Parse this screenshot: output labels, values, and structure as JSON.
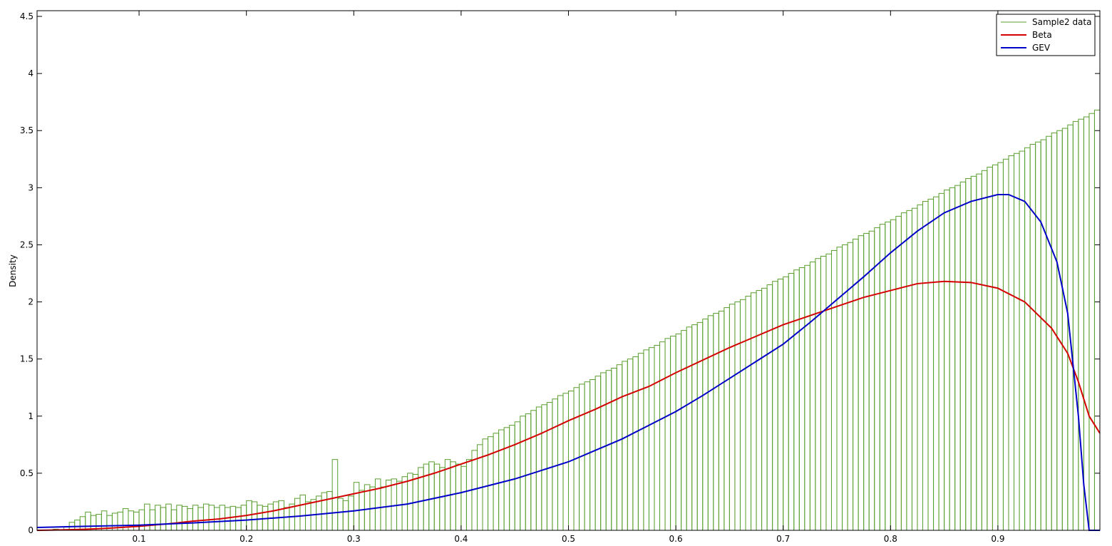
{
  "chart_data": {
    "type": "bar",
    "title": "",
    "xlabel": "",
    "ylabel": "Density",
    "xlim": [
      0.005,
      0.995
    ],
    "ylim": [
      0,
      4.55
    ],
    "xticks": [
      "0.1",
      "0.2",
      "0.3",
      "0.4",
      "0.5",
      "0.6",
      "0.7",
      "0.8",
      "0.9"
    ],
    "yticks": [
      "0",
      "0.5",
      "1",
      "1.5",
      "2",
      "2.5",
      "3",
      "3.5",
      "4",
      "4.5"
    ],
    "grid": false,
    "legend_position": "top-right",
    "histogram": {
      "name": "Sample2 data",
      "color": "#5a9e2f",
      "bin_start": 0.005,
      "bin_width": 0.005,
      "values": [
        0.0,
        0.0,
        0.0,
        0.01,
        0.0,
        0.03,
        0.07,
        0.09,
        0.12,
        0.16,
        0.13,
        0.14,
        0.17,
        0.13,
        0.15,
        0.16,
        0.19,
        0.17,
        0.16,
        0.18,
        0.23,
        0.18,
        0.22,
        0.2,
        0.23,
        0.18,
        0.22,
        0.21,
        0.19,
        0.22,
        0.2,
        0.23,
        0.22,
        0.2,
        0.22,
        0.2,
        0.21,
        0.2,
        0.22,
        0.26,
        0.25,
        0.22,
        0.21,
        0.23,
        0.25,
        0.26,
        0.2,
        0.23,
        0.28,
        0.31,
        0.25,
        0.27,
        0.3,
        0.33,
        0.34,
        0.62,
        0.28,
        0.26,
        0.3,
        0.42,
        0.35,
        0.4,
        0.38,
        0.45,
        0.38,
        0.44,
        0.45,
        0.43,
        0.47,
        0.5,
        0.49,
        0.55,
        0.58,
        0.6,
        0.58,
        0.55,
        0.62,
        0.6,
        0.58,
        0.56,
        0.62,
        0.7,
        0.75,
        0.8,
        0.82,
        0.85,
        0.88,
        0.9,
        0.92,
        0.95,
        1.0,
        1.02,
        1.05,
        1.08,
        1.1,
        1.12,
        1.15,
        1.18,
        1.2,
        1.22,
        1.25,
        1.28,
        1.3,
        1.32,
        1.35,
        1.38,
        1.4,
        1.42,
        1.45,
        1.48,
        1.5,
        1.52,
        1.55,
        1.58,
        1.6,
        1.62,
        1.65,
        1.68,
        1.7,
        1.72,
        1.75,
        1.78,
        1.8,
        1.82,
        1.85,
        1.88,
        1.9,
        1.92,
        1.95,
        1.98,
        2.0,
        2.02,
        2.05,
        2.08,
        2.1,
        2.12,
        2.15,
        2.18,
        2.2,
        2.22,
        2.25,
        2.28,
        2.3,
        2.32,
        2.35,
        2.38,
        2.4,
        2.42,
        2.45,
        2.48,
        2.5,
        2.52,
        2.55,
        2.58,
        2.6,
        2.62,
        2.65,
        2.68,
        2.7,
        2.72,
        2.75,
        2.78,
        2.8,
        2.82,
        2.85,
        2.88,
        2.9,
        2.92,
        2.95,
        2.98,
        3.0,
        3.02,
        3.05,
        3.08,
        3.1,
        3.12,
        3.15,
        3.18,
        3.2,
        3.22,
        3.25,
        3.28,
        3.3,
        3.32,
        3.35,
        3.38,
        3.4,
        3.42,
        3.45,
        3.48,
        3.5,
        3.52,
        3.55,
        3.58,
        3.6,
        3.62,
        3.65,
        3.68
      ]
    },
    "series": [
      {
        "name": "Beta",
        "type": "line",
        "color": "#d40000",
        "x": [
          0.005,
          0.025,
          0.05,
          0.075,
          0.1,
          0.125,
          0.15,
          0.175,
          0.2,
          0.225,
          0.25,
          0.275,
          0.3,
          0.325,
          0.35,
          0.375,
          0.4,
          0.425,
          0.45,
          0.475,
          0.5,
          0.525,
          0.55,
          0.575,
          0.6,
          0.625,
          0.65,
          0.675,
          0.7,
          0.725,
          0.75,
          0.775,
          0.8,
          0.825,
          0.85,
          0.875,
          0.9,
          0.925,
          0.95,
          0.965,
          0.975,
          0.985,
          0.995
        ],
        "y": [
          0.0,
          0.003,
          0.009,
          0.02,
          0.035,
          0.055,
          0.08,
          0.1,
          0.13,
          0.17,
          0.22,
          0.27,
          0.32,
          0.37,
          0.43,
          0.5,
          0.58,
          0.66,
          0.75,
          0.85,
          0.96,
          1.06,
          1.17,
          1.26,
          1.38,
          1.49,
          1.6,
          1.7,
          1.8,
          1.88,
          1.96,
          2.04,
          2.1,
          2.16,
          2.18,
          2.17,
          2.12,
          2.0,
          1.77,
          1.55,
          1.3,
          1.0,
          0.85
        ]
      },
      {
        "name": "GEV",
        "type": "line",
        "color": "#0000c8",
        "x": [
          0.005,
          0.05,
          0.1,
          0.15,
          0.2,
          0.25,
          0.3,
          0.35,
          0.4,
          0.45,
          0.5,
          0.525,
          0.55,
          0.575,
          0.6,
          0.625,
          0.65,
          0.675,
          0.7,
          0.725,
          0.75,
          0.775,
          0.8,
          0.825,
          0.85,
          0.875,
          0.9,
          0.91,
          0.925,
          0.94,
          0.955,
          0.965,
          0.975,
          0.98,
          0.985,
          0.995
        ],
        "y": [
          0.025,
          0.035,
          0.045,
          0.065,
          0.09,
          0.125,
          0.17,
          0.23,
          0.33,
          0.45,
          0.6,
          0.7,
          0.8,
          0.92,
          1.04,
          1.18,
          1.33,
          1.48,
          1.63,
          1.82,
          2.02,
          2.22,
          2.43,
          2.62,
          2.78,
          2.88,
          2.94,
          2.94,
          2.88,
          2.7,
          2.35,
          1.9,
          1.0,
          0.4,
          0.0,
          0.0
        ]
      }
    ]
  }
}
